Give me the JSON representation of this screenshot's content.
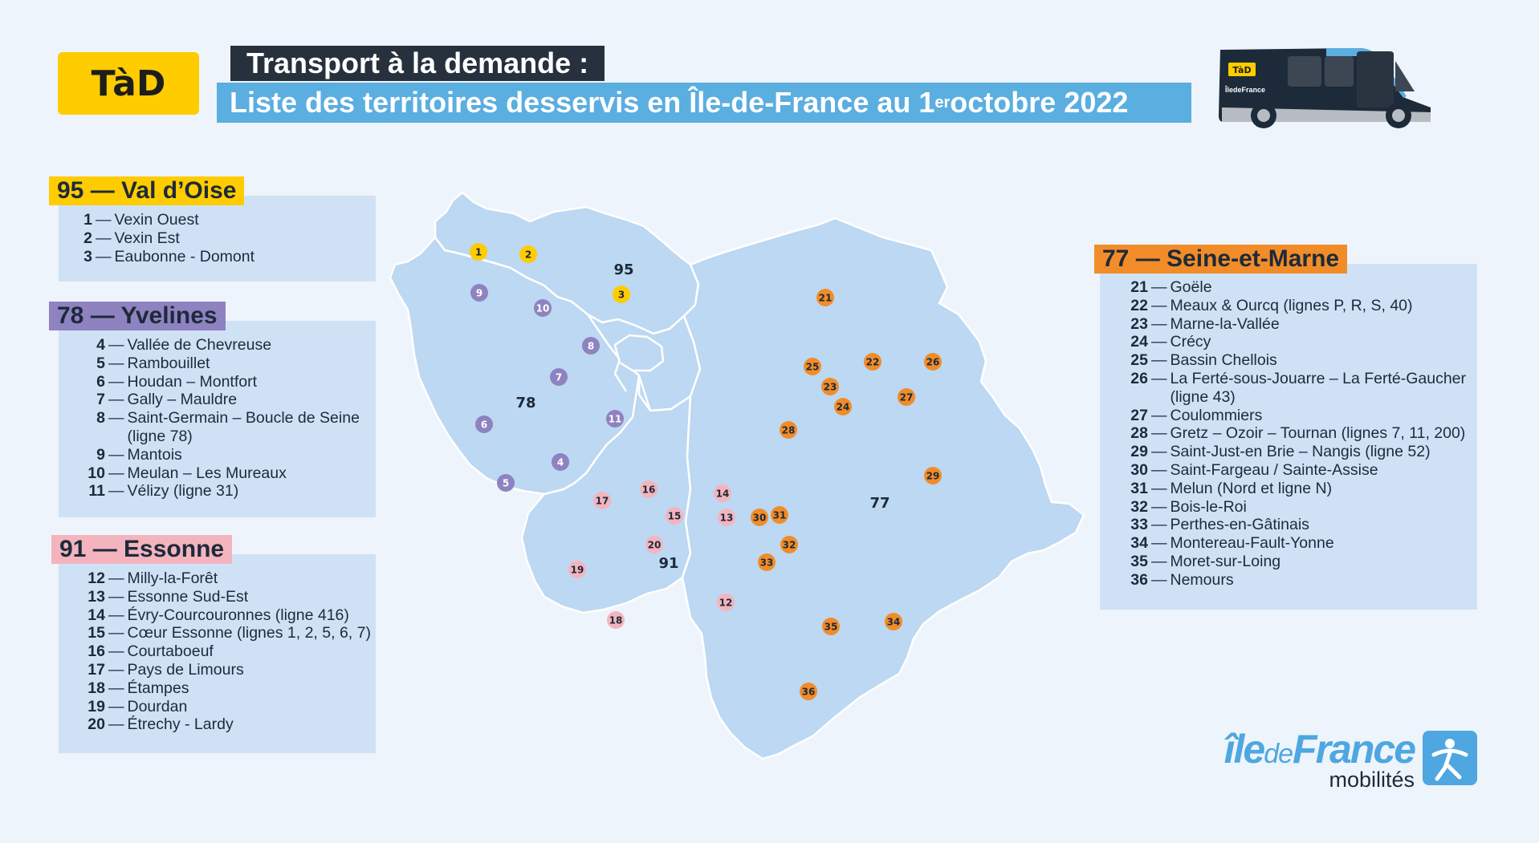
{
  "logo": {
    "text": "TàD",
    "color": "#ffcc00"
  },
  "header": {
    "line1": "Transport à la demande :",
    "line2_pre": "Liste des territoires desservis en Île-de-France au 1",
    "line2_sup": "er",
    "line2_post": " octobre 2022"
  },
  "bus": {
    "badge": "TàD",
    "brand": "ÎledeFrance"
  },
  "panels": {
    "p95": {
      "title": "95 — Val d’Oise",
      "color": "#ffcc00",
      "items": [
        {
          "num": "1",
          "label": "Vexin Ouest"
        },
        {
          "num": "2",
          "label": "Vexin Est"
        },
        {
          "num": "3",
          "label": "Eaubonne - Domont"
        }
      ]
    },
    "p78": {
      "title": "78 — Yvelines",
      "color": "#8f82c0",
      "items": [
        {
          "num": "4",
          "label": "Vallée de Chevreuse"
        },
        {
          "num": "5",
          "label": "Rambouillet"
        },
        {
          "num": "6",
          "label": "Houdan – Montfort"
        },
        {
          "num": "7",
          "label": "Gally – Mauldre"
        },
        {
          "num": "8",
          "label": "Saint-Germain – Boucle de Seine (ligne 78)"
        },
        {
          "num": "9",
          "label": "Mantois"
        },
        {
          "num": "10",
          "label": "Meulan – Les Mureaux"
        },
        {
          "num": "11",
          "label": "Vélizy (ligne 31)"
        }
      ]
    },
    "p91": {
      "title": "91 — Essonne",
      "color": "#f3b4be",
      "items": [
        {
          "num": "12",
          "label": "Milly-la-Forêt"
        },
        {
          "num": "13",
          "label": "Essonne Sud-Est"
        },
        {
          "num": "14",
          "label": "Évry-Courcouronnes (ligne 416)"
        },
        {
          "num": "15",
          "label": "Cœur Essonne (lignes 1, 2, 5, 6, 7)"
        },
        {
          "num": "16",
          "label": "Courtaboeuf"
        },
        {
          "num": "17",
          "label": "Pays de Limours"
        },
        {
          "num": "18",
          "label": "Étampes"
        },
        {
          "num": "19",
          "label": "Dourdan"
        },
        {
          "num": "20",
          "label": "Étrechy - Lardy"
        }
      ]
    },
    "p77": {
      "title": "77 — Seine-et-Marne",
      "color": "#f28c28",
      "items": [
        {
          "num": "21",
          "label": "Goële"
        },
        {
          "num": "22",
          "label": "Meaux & Ourcq (lignes P, R, S, 40)"
        },
        {
          "num": "23",
          "label": "Marne-la-Vallée"
        },
        {
          "num": "24",
          "label": "Crécy"
        },
        {
          "num": "25",
          "label": "Bassin Chellois"
        },
        {
          "num": "26",
          "label": "La Ferté-sous-Jouarre – La Ferté-Gaucher (ligne 43)"
        },
        {
          "num": "27",
          "label": "Coulommiers"
        },
        {
          "num": "28",
          "label": "Gretz – Ozoir – Tournan (lignes 7, 11, 200)"
        },
        {
          "num": "29",
          "label": "Saint-Just-en Brie – Nangis (ligne 52)"
        },
        {
          "num": "30",
          "label": "Saint-Fargeau / Sainte-Assise"
        },
        {
          "num": "31",
          "label": "Melun (Nord et ligne N)"
        },
        {
          "num": "32",
          "label": "Bois-le-Roi"
        },
        {
          "num": "33",
          "label": "Perthes-en-Gâtinais"
        },
        {
          "num": "34",
          "label": "Montereau-Fault-Yonne"
        },
        {
          "num": "35",
          "label": "Moret-sur-Loing"
        },
        {
          "num": "36",
          "label": "Nemours"
        }
      ]
    }
  },
  "map": {
    "dept_labels": {
      "d95": "95",
      "d78": "78",
      "d91": "91",
      "d77": "77"
    },
    "marker_colors": {
      "95": "#ffcc00",
      "78": "#8f82c0",
      "91": "#f3b4be",
      "77": "#f28c28"
    }
  },
  "footer": {
    "brand_a": "île",
    "brand_b": "de",
    "brand_c": "France",
    "sub": "mobilités"
  }
}
